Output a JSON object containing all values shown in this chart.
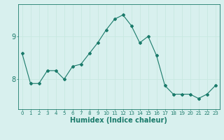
{
  "x": [
    0,
    1,
    2,
    3,
    4,
    5,
    6,
    7,
    8,
    9,
    10,
    11,
    12,
    13,
    14,
    15,
    16,
    17,
    18,
    19,
    20,
    21,
    22,
    23
  ],
  "y": [
    8.6,
    7.9,
    7.9,
    8.2,
    8.2,
    8.0,
    8.3,
    8.35,
    8.6,
    8.85,
    9.15,
    9.4,
    9.5,
    9.25,
    8.85,
    9.0,
    8.55,
    7.85,
    7.65,
    7.65,
    7.65,
    7.55,
    7.65,
    7.85
  ],
  "line_color": "#1a7a6a",
  "marker": "D",
  "marker_size": 2,
  "bg_color": "#d8f0ee",
  "grid_color": "#c8e8e0",
  "xlabel": "Humidex (Indice chaleur)",
  "xlabel_fontsize": 7,
  "tick_color": "#1a7a6a",
  "yticks": [
    8,
    9
  ],
  "ylim": [
    7.3,
    9.75
  ],
  "xlim": [
    -0.5,
    23.5
  ],
  "xticklabel_fontsize": 5,
  "yticklabel_fontsize": 7
}
